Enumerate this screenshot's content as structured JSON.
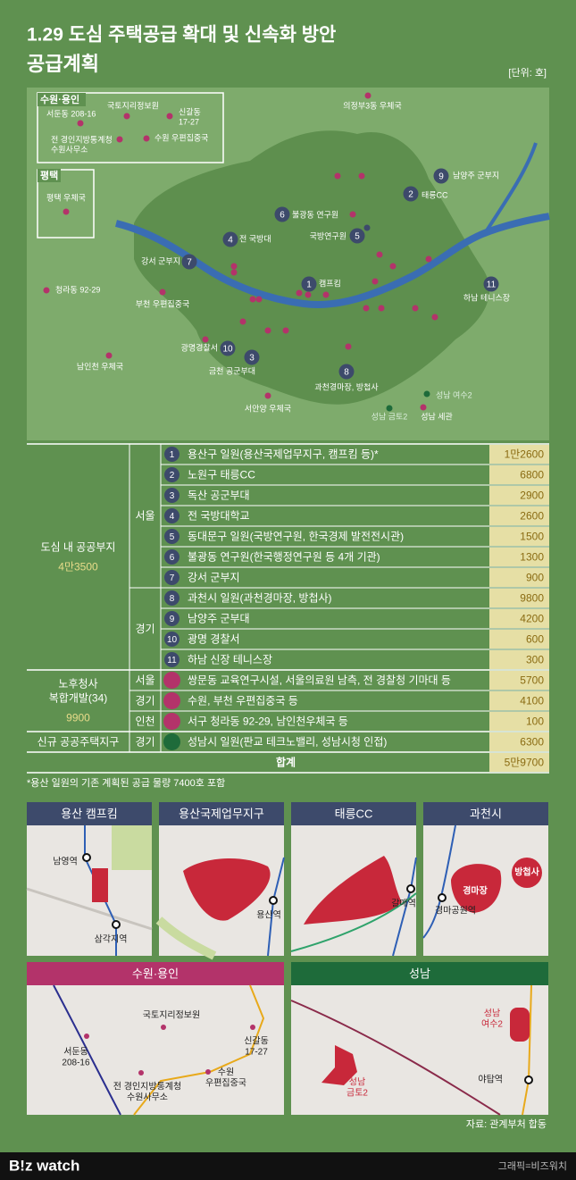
{
  "header": {
    "title": "1.29 도심 주택공급 확대 및 신속화 방안",
    "subtitle": "공급계획",
    "unit": "[단위: 호]"
  },
  "map": {
    "insets": [
      {
        "title": "수원·용인",
        "labels": [
          "서둔동 208-16",
          "국토지리정보원",
          [
            "신갈동",
            "17-27"
          ],
          [
            "전 경인지방통계청",
            "수원사무소"
          ],
          "수원 우편집중국"
        ]
      },
      {
        "title": "평택",
        "labels": [
          "평택 우체국"
        ]
      }
    ],
    "sites": [
      {
        "number": 1,
        "label": "캠프킴"
      },
      {
        "number": 2,
        "label": "태릉CC"
      },
      {
        "number": 3,
        "label": "금천 공군부대"
      },
      {
        "number": 4,
        "label": "전 국방대"
      },
      {
        "number": 5,
        "label": "국방연구원"
      },
      {
        "number": 6,
        "label": "불광동 연구원"
      },
      {
        "number": 7,
        "label": "강서 군부지"
      },
      {
        "number": 8,
        "label": "과천경마장, 방첩사"
      },
      {
        "number": 9,
        "label": "남양주 군부지"
      },
      {
        "number": 10,
        "label": "광명경찰서"
      },
      {
        "number": 11,
        "label": "하남 테니스장"
      }
    ],
    "places": [
      "의정부3동 우체국",
      "청라동 92-29",
      "부천 우편집중국",
      "남인천 우체국",
      "서안양 우체국",
      "성남 여수2",
      "성남 금토2",
      "성남 세관"
    ]
  },
  "table": {
    "groups": [
      {
        "name": "도심 내 공공부지",
        "total": "4만3500",
        "regions": [
          {
            "name": "서울",
            "rows": [
              {
                "number": 1,
                "name": "용산구 일원(용산국제업무지구, 캠프킴 등)*",
                "amount": "1만2600"
              },
              {
                "number": 2,
                "name": "노원구 태릉CC",
                "amount": 6800
              },
              {
                "number": 3,
                "name": "독산 공군부대",
                "amount": 2900
              },
              {
                "number": 4,
                "name": "전 국방대학교",
                "amount": 2600
              },
              {
                "number": 5,
                "name": "동대문구 일원(국방연구원, 한국경제 발전전시관)",
                "amount": 1500
              },
              {
                "number": 6,
                "name": "불광동 연구원(한국행정연구원 등 4개 기관)",
                "amount": 1300
              },
              {
                "number": 7,
                "name": "강서 군부지",
                "amount": 900
              }
            ]
          },
          {
            "name": "경기",
            "rows": [
              {
                "number": 8,
                "name": "과천시 일원(과천경마장, 방첩사)",
                "amount": 9800
              },
              {
                "number": 9,
                "name": "남양주 군부대",
                "amount": 4200
              },
              {
                "number": 10,
                "name": "광명 경찰서",
                "amount": 600
              },
              {
                "number": 11,
                "name": "하남 신장 테니스장",
                "amount": 300
              }
            ]
          }
        ]
      },
      {
        "name": [
          "노후청사",
          "복합개발(34)"
        ],
        "total": 9900,
        "regions": [
          {
            "name": "서울",
            "rows": [
              {
                "name": "쌍문동 교육연구시설, 서울의료원 남측, 전 경찰청 기마대 등",
                "amount": 5700
              }
            ]
          },
          {
            "name": "경기",
            "rows": [
              {
                "name": "수원, 부천 우편집중국 등",
                "amount": 4100
              }
            ]
          },
          {
            "name": "인천",
            "rows": [
              {
                "name": "서구 청라동 92-29, 남인천우체국 등",
                "amount": 100
              }
            ]
          }
        ]
      },
      {
        "name": "신규 공공주택지구",
        "regions": [
          {
            "name": "경기",
            "rows": [
              {
                "name": "성남시 일원(판교 테크노밸리, 성남시청 인접)",
                "amount": 6300
              }
            ]
          }
        ]
      }
    ],
    "total_label": "합계",
    "total": "5만9700"
  },
  "footnote": "*용산 일원의 기존 계획된 공급 물량 7400호 포함",
  "minimaps": [
    {
      "title": "용산 캠프킴",
      "labels": [
        "남영역",
        "삼각지역"
      ]
    },
    {
      "title": "용산국제업무지구",
      "labels": [
        "용산역"
      ]
    },
    {
      "title": "태릉CC",
      "labels": [
        "갈매역"
      ]
    },
    {
      "title": "과천시",
      "labels": [
        "경마장",
        "방첩사",
        "경마공원역"
      ]
    },
    {
      "title": "수원·용인",
      "labels": [
        "국토지리정보원",
        [
          "서둔동",
          "208-16"
        ],
        [
          "신갈동",
          "17-27"
        ],
        [
          "전 경인지방통계청",
          "수원사무소"
        ],
        [
          "수원",
          "우편집중국"
        ]
      ]
    },
    {
      "title": "성남",
      "labels": [
        [
          "성남",
          "여수2"
        ],
        [
          "성남",
          "금토2"
        ],
        "야탑역"
      ]
    }
  ],
  "source": "자료: 관계부처 합동",
  "footer": {
    "brand": "B!z watch",
    "credit": "그래픽=비즈워치"
  }
}
